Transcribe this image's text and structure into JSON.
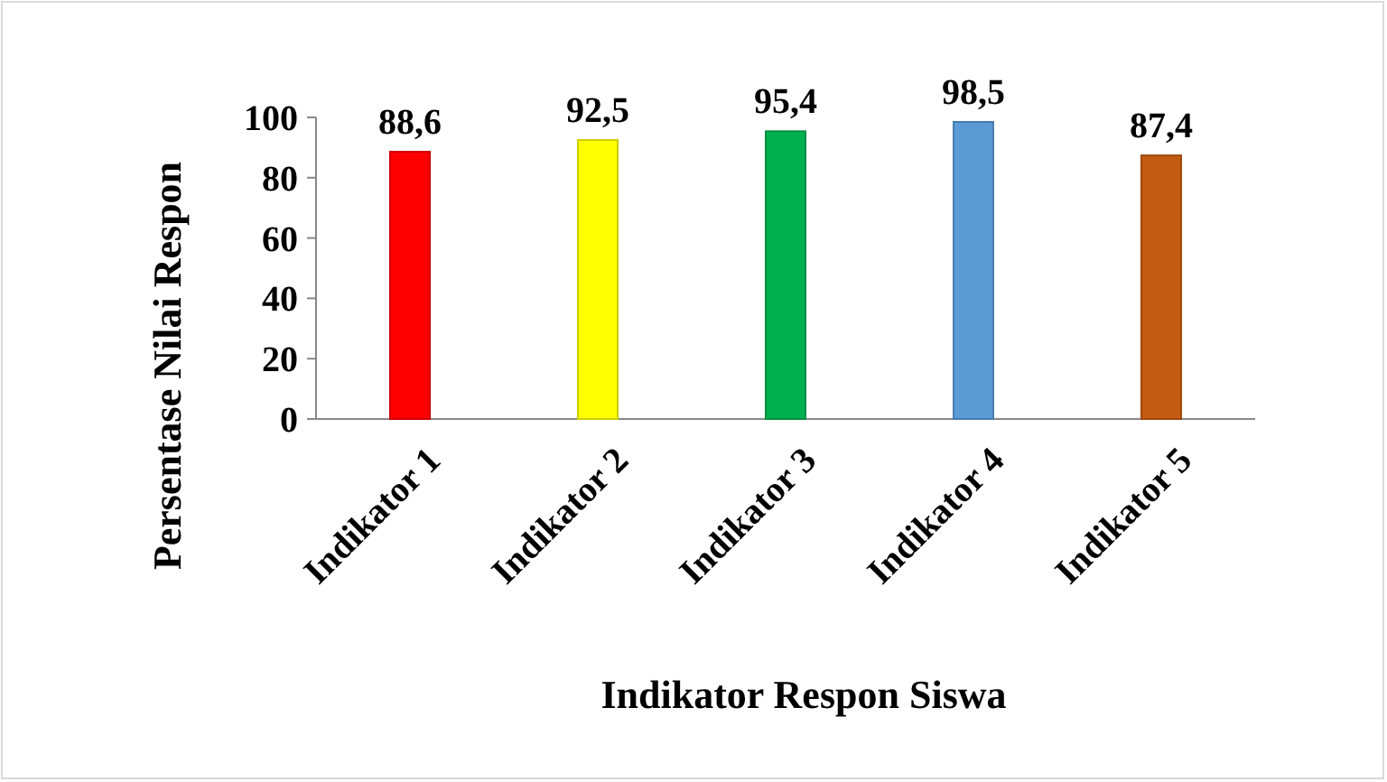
{
  "chart_data": {
    "type": "bar",
    "xlabel": "Indikator Respon Siswa",
    "ylabel": "Persentase Nilai Respon",
    "categories": [
      "Indikator 1",
      "Indikator 2",
      "Indikator 3",
      "Indikator 4",
      "Indikator 5"
    ],
    "values": [
      88.6,
      92.5,
      95.4,
      98.5,
      87.4
    ],
    "colors": [
      "#ff0000",
      "#ffff00",
      "#00b050",
      "#5b9bd5",
      "#c55a11"
    ],
    "value_labels": [
      "88,6",
      "92,5",
      "95,4",
      "98,5",
      "87,4"
    ],
    "ylim": [
      0,
      100
    ],
    "yticks": [
      0,
      20,
      40,
      60,
      80,
      100
    ]
  }
}
